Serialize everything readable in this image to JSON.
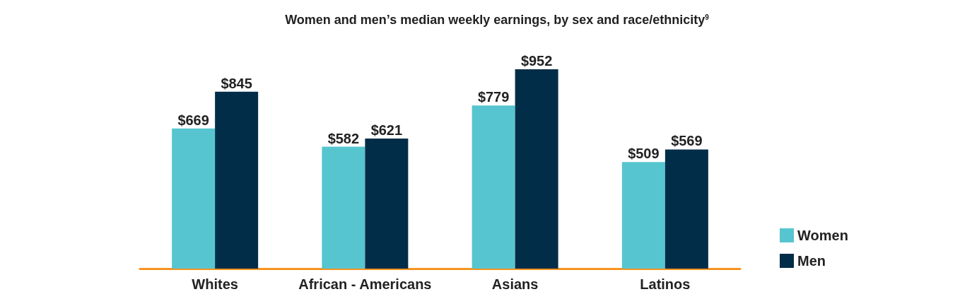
{
  "chart_data": {
    "type": "bar",
    "title": "Women and men’s median weekly earnings, by sex and race/ethnicity$^{9}$",
    "categories": [
      "Whites",
      "African - Americans",
      "Asians",
      "Latinos"
    ],
    "series": [
      {
        "name": "Women",
        "color": "#56c5d0",
        "values": [
          669,
          582,
          779,
          509
        ],
        "value_labels": [
          "$669",
          "$582",
          "$779",
          "$509"
        ]
      },
      {
        "name": "Men",
        "color": "#022d48",
        "values": [
          845,
          621,
          952,
          569
        ],
        "value_labels": [
          "$845",
          "$621",
          "$952",
          "$569"
        ]
      }
    ],
    "legend": "right"
  }
}
